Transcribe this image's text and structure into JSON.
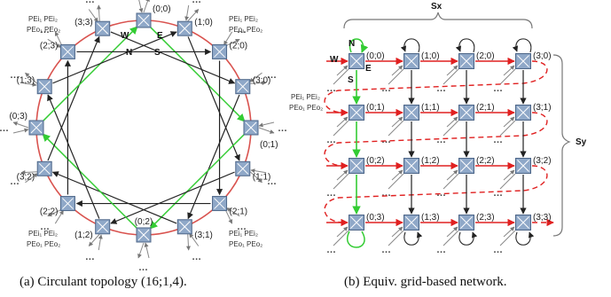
{
  "panel_a": {
    "caption": "(a) Circulant topology (16;1,4).",
    "port_labels": {
      "w": "W",
      "e": "E",
      "n": "N",
      "s": "S"
    },
    "pe_label_line1": "PEi₁ PEi₂",
    "pe_label_line2": "PEo₁ PEo₂",
    "dots": "…",
    "nodes": [
      "(0;0)",
      "(1;0)",
      "(2;0)",
      "(3;0)",
      "(0;1)",
      "(1;1)",
      "(2;1)",
      "(3;1)",
      "(0;2)",
      "(1;2)",
      "(2;2)",
      "(3;2)",
      "(0;3)",
      "(1;3)",
      "(2;3)",
      "(3;3)"
    ]
  },
  "panel_b": {
    "caption": "(b) Equiv. grid-based network.",
    "sx_label": "Sx",
    "sy_label": "Sy",
    "port_labels": {
      "w": "W",
      "e": "E",
      "n": "N",
      "s": "S"
    },
    "pe_label_line1": "PEi₁ PEi₂",
    "pe_label_line2": "PEo₁ PEo₂",
    "dots": "…",
    "grid": [
      [
        "(0;0)",
        "(1;0)",
        "(2;0)",
        "(3;0)"
      ],
      [
        "(0;1)",
        "(1;1)",
        "(2;1)",
        "(3;1)"
      ],
      [
        "(0;2)",
        "(1;2)",
        "(2;2)",
        "(3;2)"
      ],
      [
        "(0;3)",
        "(1;3)",
        "(2;3)",
        "(3;3)"
      ]
    ]
  },
  "colors": {
    "node_fill": "#8fa8c8",
    "ring": "#d9534f",
    "chord": "#222222",
    "green": "#33cc33",
    "red_link": "#e02020"
  }
}
